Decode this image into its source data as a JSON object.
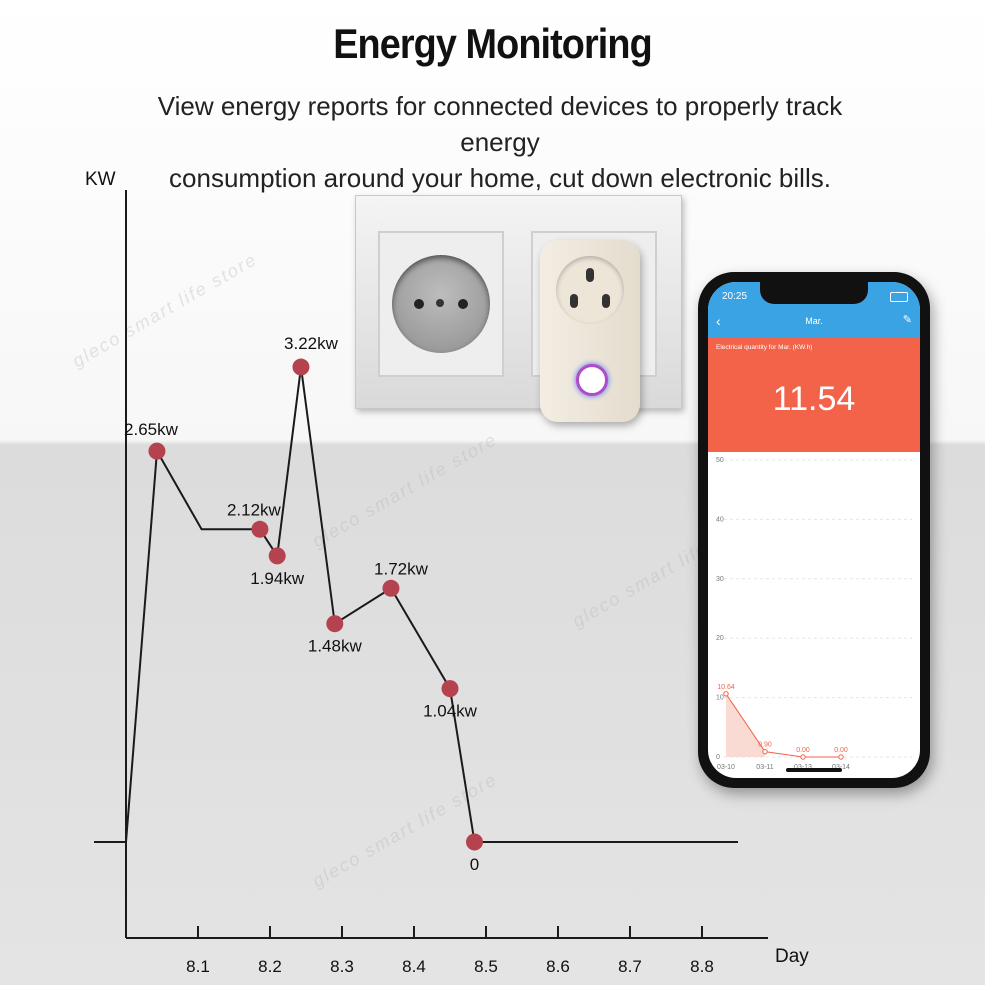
{
  "header": {
    "title": "Energy Monitoring",
    "subtitle_line1": "View energy reports for connected devices to properly track energy",
    "subtitle_line2": "consumption around your  home, cut down electronic bills."
  },
  "watermark": "gleco smart life store",
  "colors": {
    "marker": "#b5424f",
    "line": "#1a1a1a",
    "phone_header": "#3aa3e4",
    "phone_accent": "#f2634a"
  },
  "chart_data": [
    {
      "type": "line",
      "xlabel": "Day",
      "ylabel": "KW",
      "x_ticks": [
        "8.1",
        "8.2",
        "8.3",
        "8.4",
        "8.5",
        "8.6",
        "8.7",
        "8.8"
      ],
      "y_range": [
        0,
        3.22
      ],
      "x_range": [
        8.0,
        8.85
      ],
      "points": [
        {
          "x": 8.0,
          "y": 0,
          "marker": false,
          "label": ""
        },
        {
          "x": 8.043,
          "y": 2.65,
          "marker": true,
          "label": "2.65kw"
        },
        {
          "x": 8.105,
          "y": 2.12,
          "marker": false,
          "label": ""
        },
        {
          "x": 8.186,
          "y": 2.12,
          "marker": true,
          "label": "2.12kw"
        },
        {
          "x": 8.21,
          "y": 1.94,
          "marker": true,
          "label": "1.94kw"
        },
        {
          "x": 8.243,
          "y": 3.22,
          "marker": true,
          "label": "3.22kw"
        },
        {
          "x": 8.29,
          "y": 1.48,
          "marker": true,
          "label": "1.48kw"
        },
        {
          "x": 8.368,
          "y": 1.72,
          "marker": true,
          "label": "1.72kw"
        },
        {
          "x": 8.45,
          "y": 1.04,
          "marker": true,
          "label": "1.04kw"
        },
        {
          "x": 8.484,
          "y": 0,
          "marker": true,
          "label": "0"
        },
        {
          "x": 8.85,
          "y": 0,
          "marker": false,
          "label": ""
        }
      ]
    },
    {
      "type": "area",
      "title": "Electrical quantity for Mar. (KW.h)",
      "categories": [
        "03-10",
        "03-11",
        "03-13",
        "03-14"
      ],
      "values": [
        10.64,
        0.9,
        0.0,
        0.0
      ],
      "value_labels": [
        "10.64",
        "0.90",
        "0.00",
        "0.00"
      ],
      "y_ticks": [
        "50",
        "40",
        "30",
        "20",
        "10",
        "0"
      ],
      "ylim": [
        0,
        50
      ]
    }
  ],
  "phone": {
    "time": "20:25",
    "nav_title": "Mar.",
    "total_label": "Electrical quantity for Mar. (KW.h)",
    "total_value": "11.54"
  }
}
